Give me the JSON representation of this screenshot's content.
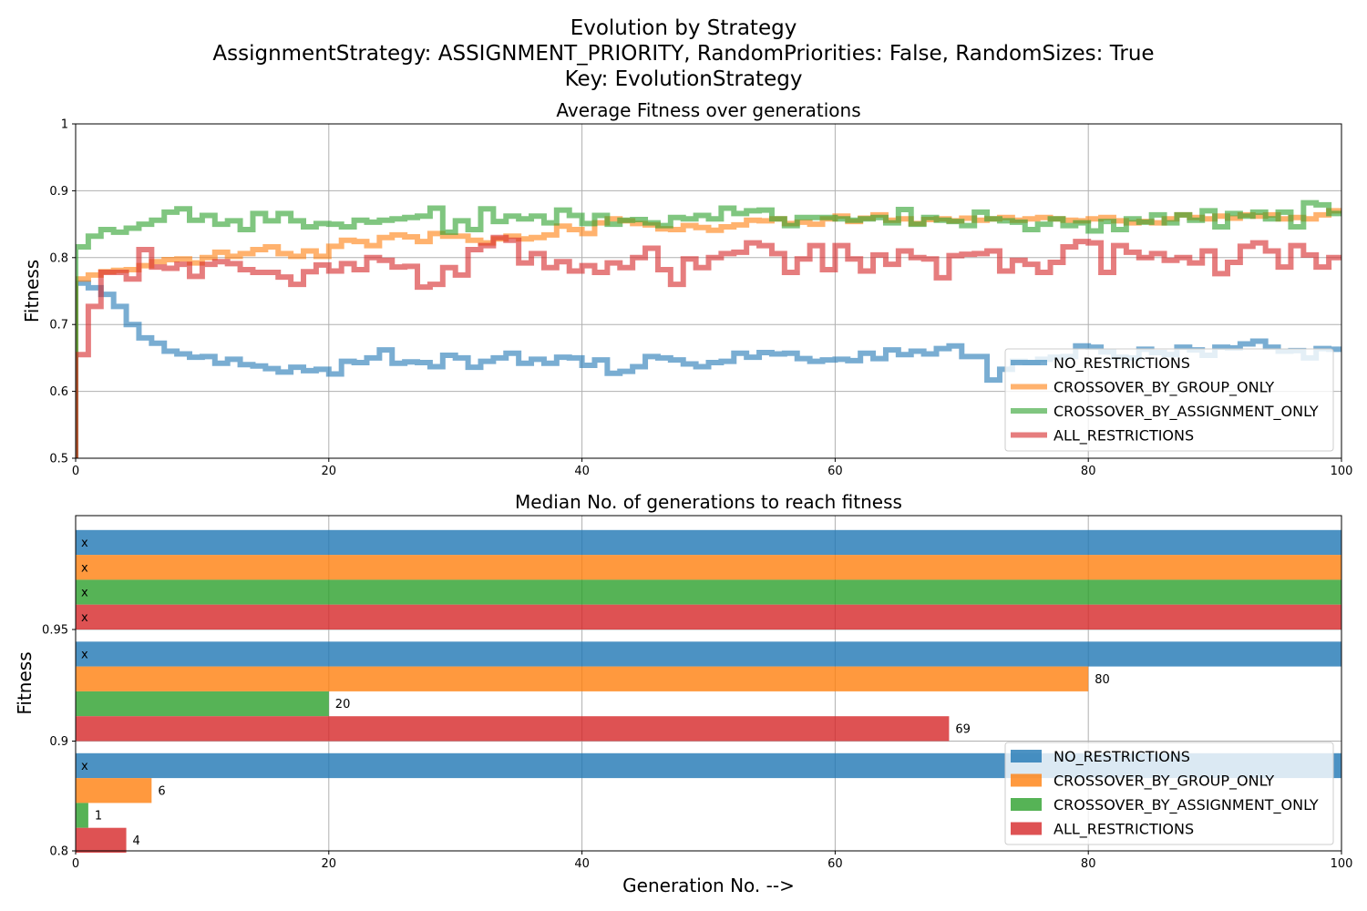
{
  "figure": {
    "title_line1": "Evolution by Strategy",
    "title_line2": "AssignmentStrategy: ASSIGNMENT_PRIORITY, RandomPriorities: False, RandomSizes: True",
    "title_line3": "Key: EvolutionStrategy"
  },
  "chart_data": [
    {
      "type": "line",
      "title": "Average Fitness over generations",
      "xlabel": "",
      "ylabel": "Fitness",
      "xlim": [
        0,
        100
      ],
      "ylim": [
        0.5,
        1.0
      ],
      "xticks": [
        0,
        20,
        40,
        60,
        80,
        100
      ],
      "yticks": [
        0.5,
        0.6,
        0.7,
        0.8,
        0.9,
        1.0
      ],
      "grid": true,
      "drawstyle": "steps-post",
      "legend_position": "lower-right",
      "x": [
        0,
        1,
        2,
        3,
        4,
        5,
        6,
        7,
        8,
        9,
        10,
        11,
        12,
        13,
        14,
        15,
        16,
        17,
        18,
        19,
        20,
        21,
        22,
        23,
        24,
        25,
        26,
        27,
        28,
        29,
        30,
        31,
        32,
        33,
        34,
        35,
        36,
        37,
        38,
        39,
        40,
        41,
        42,
        43,
        44,
        45,
        46,
        47,
        48,
        49,
        50,
        51,
        52,
        53,
        54,
        55,
        56,
        57,
        58,
        59,
        60,
        61,
        62,
        63,
        64,
        65,
        66,
        67,
        68,
        69,
        70,
        71,
        72,
        73,
        74,
        75,
        76,
        77,
        78,
        79,
        80,
        81,
        82,
        83,
        84,
        85,
        86,
        87,
        88,
        89,
        90,
        91,
        92,
        93,
        94,
        95,
        96,
        97,
        98,
        99,
        100
      ],
      "series": [
        {
          "name": "NO_RESTRICTIONS",
          "color": "#1f77b4",
          "values": [
            0.762,
            0.755,
            0.745,
            0.727,
            0.7,
            0.68,
            0.672,
            0.66,
            0.656,
            0.651,
            0.652,
            0.642,
            0.648,
            0.64,
            0.638,
            0.634,
            0.629,
            0.636,
            0.631,
            0.633,
            0.626,
            0.645,
            0.643,
            0.65,
            0.662,
            0.642,
            0.644,
            0.643,
            0.637,
            0.654,
            0.65,
            0.636,
            0.645,
            0.65,
            0.657,
            0.642,
            0.648,
            0.642,
            0.651,
            0.65,
            0.639,
            0.647,
            0.627,
            0.63,
            0.637,
            0.652,
            0.65,
            0.647,
            0.641,
            0.637,
            0.643,
            0.645,
            0.657,
            0.651,
            0.658,
            0.656,
            0.657,
            0.649,
            0.645,
            0.647,
            0.648,
            0.646,
            0.657,
            0.649,
            0.662,
            0.655,
            0.66,
            0.656,
            0.664,
            0.668,
            0.652,
            0.652,
            0.617,
            0.633,
            0.645,
            0.643,
            0.648,
            0.651,
            0.652,
            0.668,
            0.666,
            0.659,
            0.651,
            0.65,
            0.663,
            0.658,
            0.655,
            0.666,
            0.662,
            0.654,
            0.666,
            0.665,
            0.671,
            0.675,
            0.666,
            0.66,
            0.661,
            0.65,
            0.664,
            0.663,
            0.659
          ]
        },
        {
          "name": "CROSSOVER_BY_GROUP_ONLY",
          "color": "#ff7f0e",
          "values": [
            0.768,
            0.774,
            0.779,
            0.781,
            0.782,
            0.788,
            0.794,
            0.797,
            0.798,
            0.792,
            0.8,
            0.808,
            0.802,
            0.806,
            0.812,
            0.816,
            0.806,
            0.802,
            0.81,
            0.802,
            0.817,
            0.826,
            0.824,
            0.818,
            0.83,
            0.834,
            0.831,
            0.824,
            0.836,
            0.832,
            0.832,
            0.826,
            0.822,
            0.828,
            0.832,
            0.828,
            0.83,
            0.834,
            0.847,
            0.842,
            0.836,
            0.852,
            0.858,
            0.855,
            0.851,
            0.849,
            0.843,
            0.842,
            0.848,
            0.845,
            0.841,
            0.846,
            0.849,
            0.856,
            0.855,
            0.858,
            0.851,
            0.853,
            0.85,
            0.858,
            0.862,
            0.854,
            0.859,
            0.864,
            0.856,
            0.858,
            0.851,
            0.857,
            0.858,
            0.855,
            0.859,
            0.856,
            0.858,
            0.86,
            0.856,
            0.858,
            0.86,
            0.858,
            0.856,
            0.855,
            0.858,
            0.86,
            0.855,
            0.852,
            0.854,
            0.852,
            0.858,
            0.864,
            0.86,
            0.858,
            0.862,
            0.859,
            0.864,
            0.862,
            0.864,
            0.858,
            0.86,
            0.858,
            0.864,
            0.87,
            0.874
          ]
        },
        {
          "name": "CROSSOVER_BY_ASSIGNMENT_ONLY",
          "color": "#2ca02c",
          "values": [
            0.816,
            0.832,
            0.842,
            0.838,
            0.844,
            0.85,
            0.856,
            0.868,
            0.873,
            0.856,
            0.863,
            0.85,
            0.855,
            0.842,
            0.866,
            0.855,
            0.866,
            0.855,
            0.846,
            0.851,
            0.85,
            0.846,
            0.856,
            0.853,
            0.856,
            0.858,
            0.86,
            0.862,
            0.874,
            0.838,
            0.855,
            0.842,
            0.873,
            0.854,
            0.862,
            0.858,
            0.862,
            0.852,
            0.871,
            0.863,
            0.851,
            0.863,
            0.85,
            0.856,
            0.857,
            0.852,
            0.848,
            0.86,
            0.858,
            0.863,
            0.858,
            0.874,
            0.866,
            0.87,
            0.871,
            0.858,
            0.848,
            0.86,
            0.86,
            0.86,
            0.858,
            0.856,
            0.858,
            0.86,
            0.852,
            0.872,
            0.85,
            0.86,
            0.856,
            0.854,
            0.848,
            0.868,
            0.858,
            0.855,
            0.853,
            0.842,
            0.85,
            0.858,
            0.848,
            0.852,
            0.84,
            0.854,
            0.842,
            0.858,
            0.853,
            0.864,
            0.852,
            0.864,
            0.856,
            0.87,
            0.846,
            0.866,
            0.862,
            0.868,
            0.858,
            0.868,
            0.846,
            0.882,
            0.879,
            0.866,
            0.864
          ]
        },
        {
          "name": "ALL_RESTRICTIONS",
          "color": "#d62728",
          "values": [
            0.655,
            0.727,
            0.778,
            0.778,
            0.768,
            0.812,
            0.786,
            0.784,
            0.79,
            0.772,
            0.79,
            0.794,
            0.791,
            0.782,
            0.778,
            0.778,
            0.771,
            0.76,
            0.779,
            0.789,
            0.78,
            0.791,
            0.782,
            0.8,
            0.796,
            0.786,
            0.787,
            0.756,
            0.76,
            0.785,
            0.774,
            0.812,
            0.818,
            0.83,
            0.826,
            0.792,
            0.806,
            0.785,
            0.794,
            0.78,
            0.788,
            0.778,
            0.792,
            0.785,
            0.8,
            0.814,
            0.782,
            0.76,
            0.798,
            0.785,
            0.8,
            0.806,
            0.808,
            0.822,
            0.818,
            0.806,
            0.778,
            0.798,
            0.818,
            0.782,
            0.818,
            0.798,
            0.78,
            0.804,
            0.79,
            0.81,
            0.8,
            0.798,
            0.77,
            0.803,
            0.805,
            0.806,
            0.81,
            0.78,
            0.796,
            0.79,
            0.778,
            0.793,
            0.816,
            0.824,
            0.822,
            0.778,
            0.818,
            0.808,
            0.8,
            0.806,
            0.796,
            0.8,
            0.792,
            0.81,
            0.776,
            0.793,
            0.817,
            0.822,
            0.81,
            0.786,
            0.818,
            0.804,
            0.786,
            0.8,
            0.802
          ]
        }
      ]
    },
    {
      "type": "bar",
      "orientation": "horizontal",
      "title": "Median No. of generations to reach fitness",
      "xlabel": "Generation No. -->",
      "ylabel": "Fitness",
      "xlim": [
        0,
        100
      ],
      "xticks": [
        0,
        20,
        40,
        60,
        80,
        100
      ],
      "categories": [
        "0.8",
        "0.9",
        "0.95"
      ],
      "grid": true,
      "legend_position": "lower-right",
      "not_reached_label": "x",
      "series": [
        {
          "name": "NO_RESTRICTIONS",
          "color": "#1f77b4",
          "values": [
            100,
            100,
            100
          ],
          "labels": [
            "x",
            "x",
            "x"
          ]
        },
        {
          "name": "CROSSOVER_BY_GROUP_ONLY",
          "color": "#ff7f0e",
          "values": [
            6,
            80,
            100
          ],
          "labels": [
            "6",
            "80",
            "x"
          ]
        },
        {
          "name": "CROSSOVER_BY_ASSIGNMENT_ONLY",
          "color": "#2ca02c",
          "values": [
            1,
            20,
            100
          ],
          "labels": [
            "1",
            "20",
            "x"
          ]
        },
        {
          "name": "ALL_RESTRICTIONS",
          "color": "#d62728",
          "values": [
            4,
            69,
            100
          ],
          "labels": [
            "4",
            "69",
            "x"
          ]
        }
      ]
    }
  ]
}
